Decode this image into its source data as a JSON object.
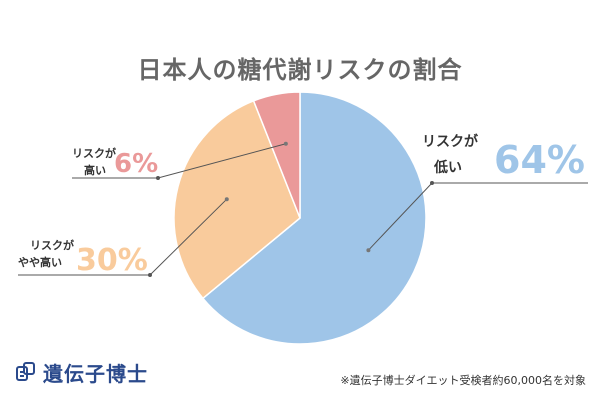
{
  "chart_data": {
    "type": "pie",
    "title": "日本人の糖代謝リスクの割合",
    "slices": [
      {
        "label_lines": [
          "リスクが",
          "低い"
        ],
        "value": 64,
        "value_text": "64%",
        "color": "#9fc5e8"
      },
      {
        "label_lines": [
          "リスクが",
          "やや高い"
        ],
        "value": 30,
        "value_text": "30%",
        "color": "#f9cb9c"
      },
      {
        "label_lines": [
          "リスクが",
          "高い"
        ],
        "value": 6,
        "value_text": "6%",
        "color": "#ea9999"
      }
    ],
    "start_angle_deg": 0,
    "direction": "clockwise",
    "legend": "none"
  },
  "logo": {
    "text": "遺伝子博士",
    "icon": "dna-pin-icon"
  },
  "footnote": "※遺伝子博士ダイエット受検者約60,000名を対象"
}
